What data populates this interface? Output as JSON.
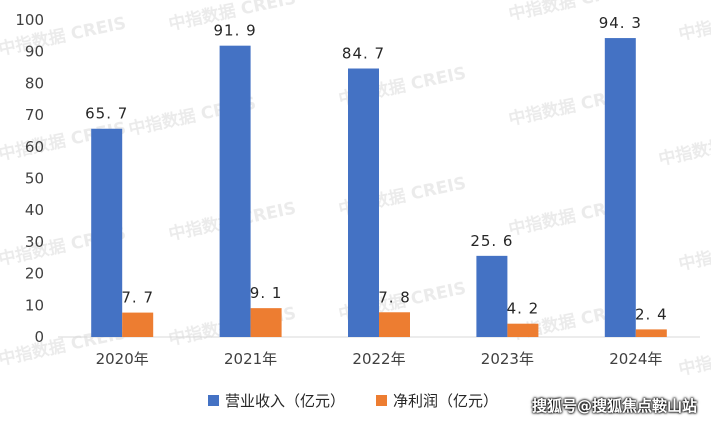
{
  "chart_data": {
    "type": "bar",
    "categories": [
      "2020年",
      "2021年",
      "2022年",
      "2023年",
      "2024年"
    ],
    "series": [
      {
        "name": "营业收入（亿元）",
        "values": [
          65.7,
          91.9,
          84.7,
          25.6,
          94.3
        ],
        "color": "#4472c4"
      },
      {
        "name": "净利润（亿元）",
        "values": [
          7.7,
          9.1,
          7.8,
          4.2,
          2.4
        ],
        "color": "#ed7d31"
      }
    ],
    "data_labels": [
      [
        "65. 7",
        "91. 9",
        "84. 7",
        "25. 6",
        "94. 3"
      ],
      [
        "7. 7",
        "9. 1",
        "7. 8",
        "4. 2",
        "2. 4"
      ]
    ],
    "yticks": [
      "0",
      "10",
      "20",
      "30",
      "40",
      "50",
      "60",
      "70",
      "80",
      "90",
      "100"
    ],
    "ylim": [
      0,
      100
    ],
    "grid": false,
    "legend": "bottom"
  },
  "watermark": "中指数据 CREIS",
  "credit": "搜狐号@搜狐焦点鞍山站"
}
